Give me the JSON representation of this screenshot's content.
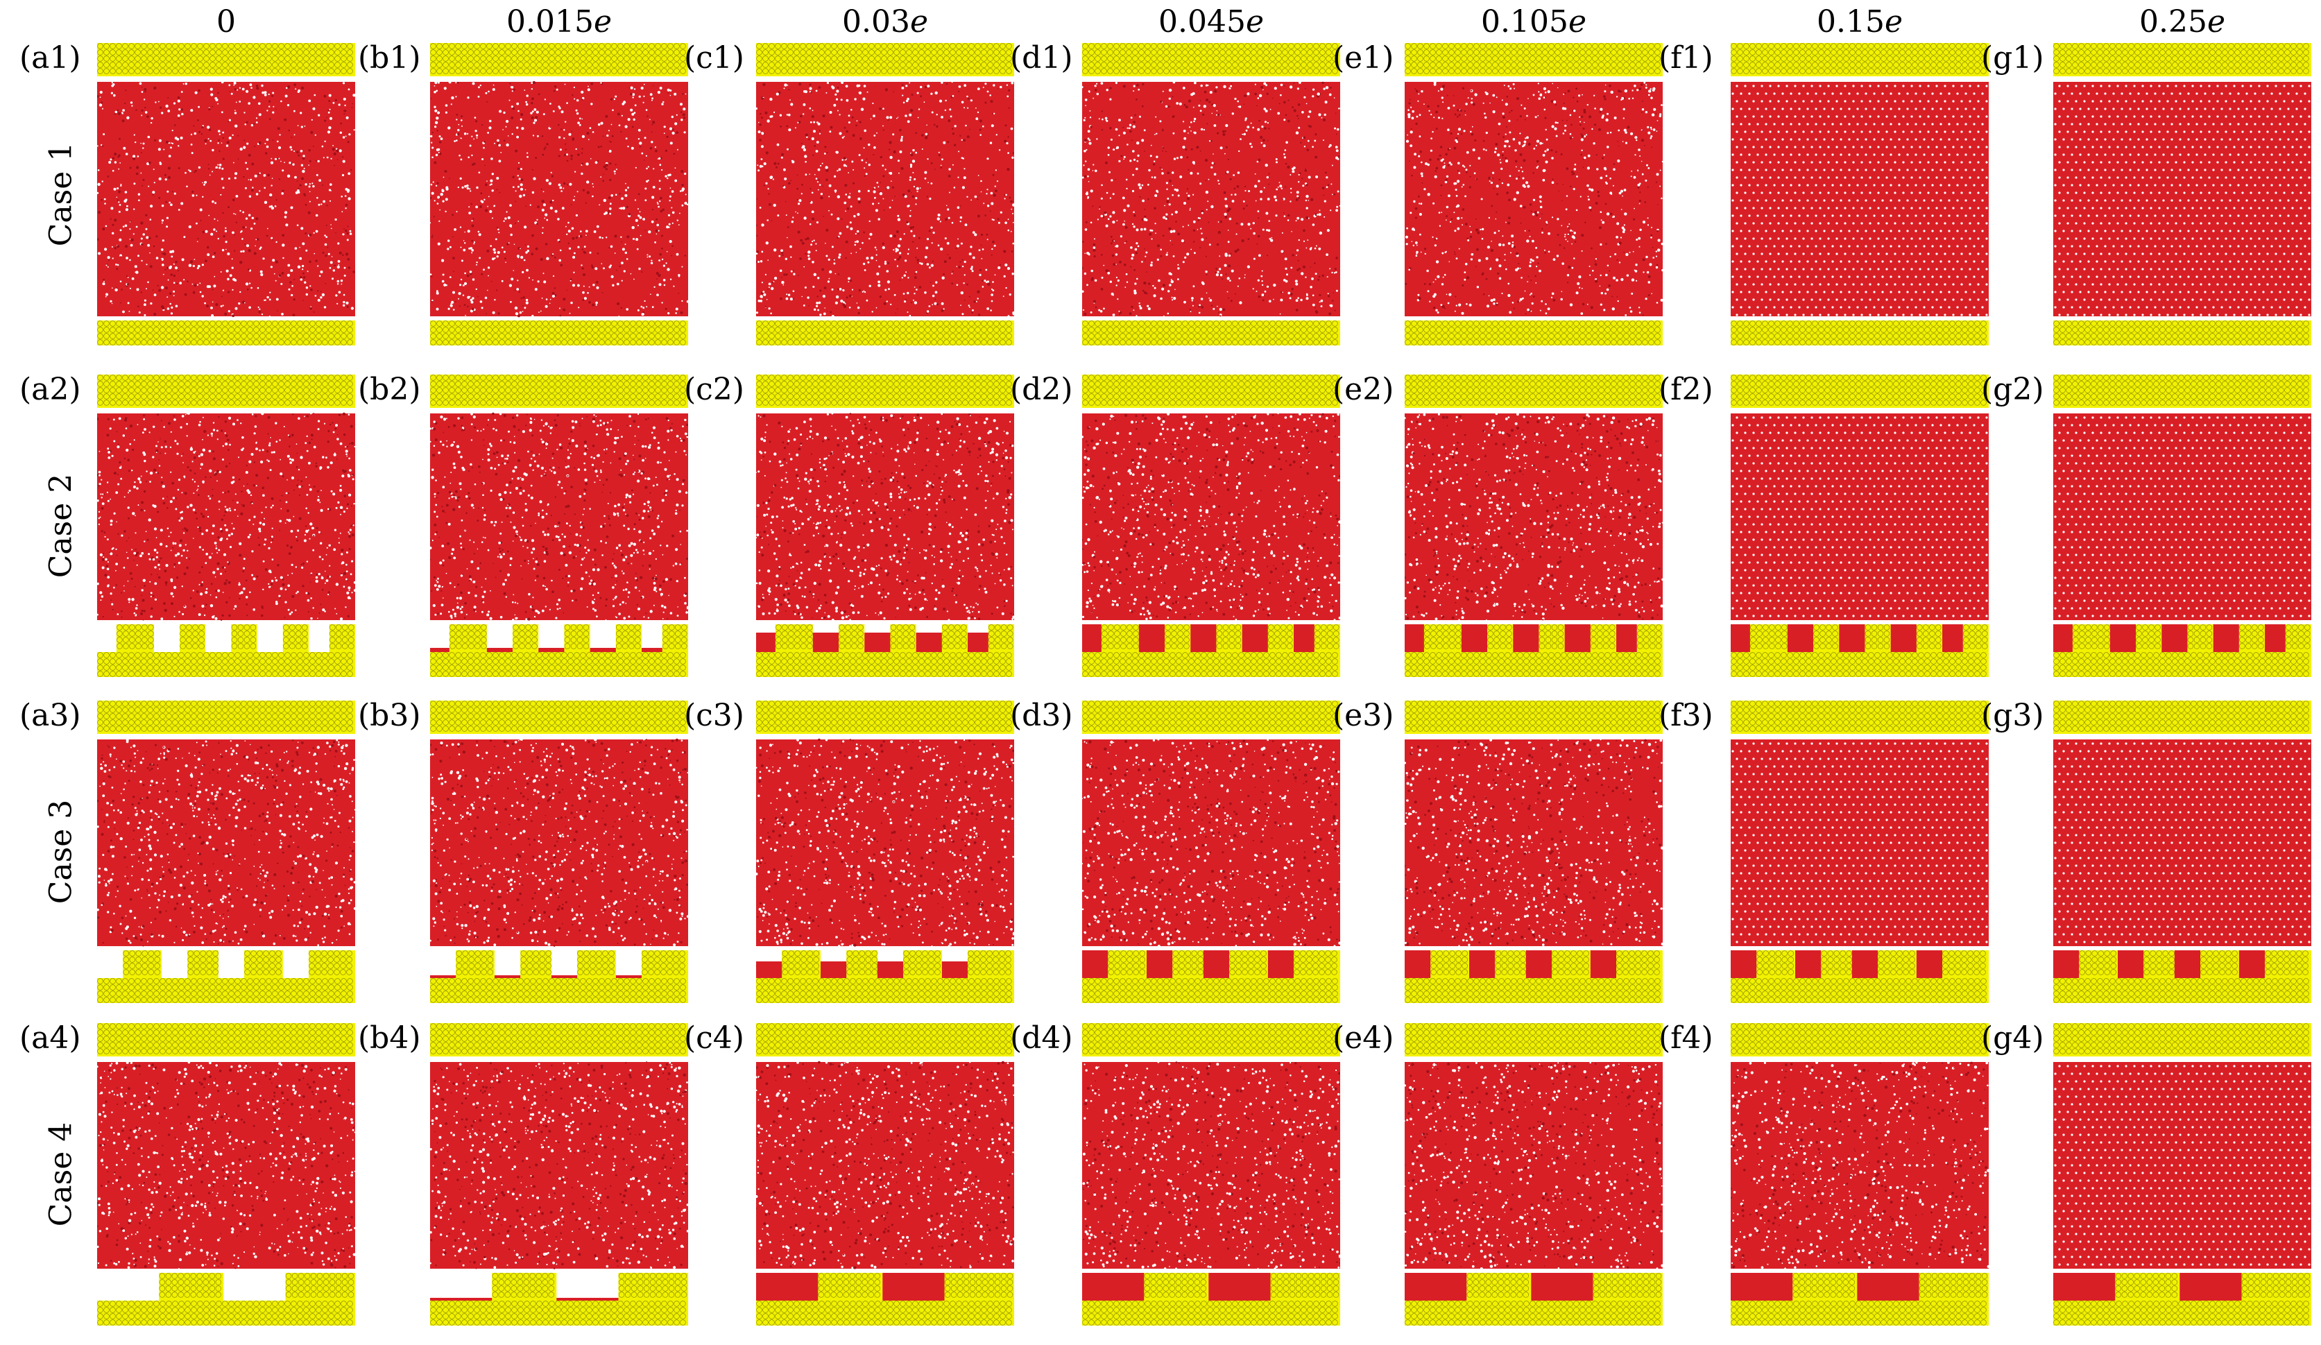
{
  "columns": [
    {
      "value": "0",
      "unit": ""
    },
    {
      "value": "0.015",
      "unit": "e"
    },
    {
      "value": "0.03",
      "unit": "e"
    },
    {
      "value": "0.045",
      "unit": "e"
    },
    {
      "value": "0.105",
      "unit": "e"
    },
    {
      "value": "0.15",
      "unit": "e"
    },
    {
      "value": "0.25",
      "unit": "e"
    }
  ],
  "rows": [
    {
      "label": "Case 1",
      "bottom": "flat",
      "cavity_fill": [
        0,
        0,
        0,
        0,
        0,
        0,
        0
      ],
      "ordered": [
        0,
        0,
        0,
        0,
        0,
        1,
        1
      ]
    },
    {
      "label": "Case 2",
      "bottom": "narrow-grooves",
      "cavity_fill": [
        0,
        0.15,
        0.7,
        1,
        1,
        1,
        1
      ],
      "ordered": [
        0,
        0,
        0,
        0,
        0,
        1,
        1
      ]
    },
    {
      "label": "Case 3",
      "bottom": "narrow-grooves-shifted",
      "cavity_fill": [
        0,
        0.1,
        0.6,
        1,
        1,
        1,
        1
      ],
      "ordered": [
        0,
        0,
        0,
        0,
        0,
        1,
        1
      ]
    },
    {
      "label": "Case 4",
      "bottom": "wide-grooves",
      "cavity_fill": [
        0,
        0.1,
        1,
        1,
        1,
        1,
        1
      ],
      "ordered": [
        0,
        0,
        0,
        0,
        0,
        0,
        1
      ]
    }
  ],
  "panels": [
    [
      "(a1)",
      "(b1)",
      "(c1)",
      "(d1)",
      "(e1)",
      "(f1)",
      "(g1)"
    ],
    [
      "(a2)",
      "(b2)",
      "(c2)",
      "(d2)",
      "(e2)",
      "(f2)",
      "(g2)"
    ],
    [
      "(a3)",
      "(b3)",
      "(c3)",
      "(d3)",
      "(e3)",
      "(f3)",
      "(g3)"
    ],
    [
      "(a4)",
      "(b4)",
      "(c4)",
      "(d4)",
      "(e4)",
      "(f4)",
      "(g4)"
    ]
  ],
  "colors": {
    "wall": "#f2f200",
    "wall_edge": "#8a8a00",
    "fluid": "#d91f26",
    "fluid_dark": "#a01018",
    "void": "#ffffff"
  }
}
